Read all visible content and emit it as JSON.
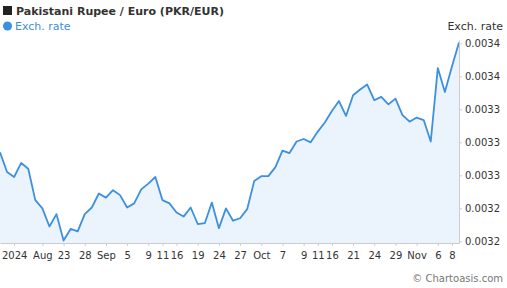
{
  "chart_data": {
    "type": "line",
    "title": "Pakistani Rupee / Euro (PKR/EUR)",
    "ylabel": "Exch. rate",
    "annotations": [
      "© Chartoasis.com"
    ],
    "legend": "top-left",
    "grid": false,
    "categories": [
      null,
      null,
      "2024",
      null,
      null,
      null,
      "Aug",
      null,
      null,
      "23",
      null,
      null,
      "28",
      null,
      null,
      "Sep",
      null,
      null,
      "5",
      null,
      null,
      "9",
      null,
      "11",
      null,
      "16",
      null,
      null,
      "19",
      null,
      null,
      "24",
      null,
      null,
      "27",
      null,
      null,
      "Oct",
      null,
      null,
      "7",
      null,
      null,
      "9",
      null,
      "11",
      null,
      "16",
      null,
      null,
      "21",
      null,
      null,
      "24",
      null,
      null,
      "29",
      null,
      null,
      "Nov",
      null,
      null,
      "6",
      null,
      "8",
      null
    ],
    "series": [
      {
        "name": "Exch. rate",
        "color": "#3d8fe0",
        "values": [
          0.003288,
          0.003264,
          0.003258,
          0.003275,
          0.003268,
          0.00323,
          0.00322,
          0.003198,
          0.003213,
          0.003181,
          0.003195,
          0.003192,
          0.003213,
          0.003221,
          0.003238,
          0.003233,
          0.003242,
          0.003236,
          0.003221,
          0.003226,
          0.003243,
          0.00325,
          0.003258,
          0.00323,
          0.003226,
          0.003215,
          0.00321,
          0.003221,
          0.003201,
          0.003202,
          0.003227,
          0.003196,
          0.00322,
          0.003205,
          0.003208,
          0.003219,
          0.003253,
          0.003259,
          0.003259,
          0.00327,
          0.00329,
          0.003287,
          0.003301,
          0.003304,
          0.0033,
          0.003313,
          0.003324,
          0.003338,
          0.00335,
          0.003332,
          0.003357,
          0.003364,
          0.00337,
          0.003351,
          0.003355,
          0.003346,
          0.003353,
          0.003333,
          0.003325,
          0.00333,
          0.003327,
          0.003301,
          0.00339,
          0.003361,
          0.003392,
          0.003421
        ]
      }
    ],
    "ylim": [
      0.003178,
      0.003424
    ],
    "yticks": [
      {
        "value": 0.00318,
        "label": "0.0032"
      },
      {
        "value": 0.00322,
        "label": "0.0032"
      },
      {
        "value": 0.00326,
        "label": "0.0033"
      },
      {
        "value": 0.0033,
        "label": "0.0033"
      },
      {
        "value": 0.00334,
        "label": "0.0033"
      },
      {
        "value": 0.00338,
        "label": "0.0034"
      },
      {
        "value": 0.00342,
        "label": "0.0034"
      }
    ]
  }
}
